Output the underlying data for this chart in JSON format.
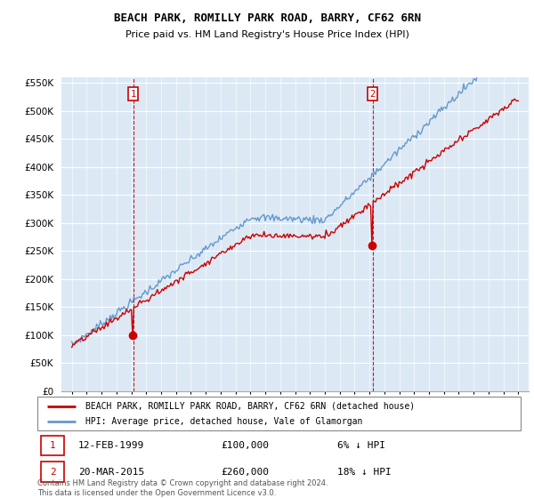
{
  "title": "BEACH PARK, ROMILLY PARK ROAD, BARRY, CF62 6RN",
  "subtitle": "Price paid vs. HM Land Registry's House Price Index (HPI)",
  "legend_label_red": "BEACH PARK, ROMILLY PARK ROAD, BARRY, CF62 6RN (detached house)",
  "legend_label_blue": "HPI: Average price, detached house, Vale of Glamorgan",
  "marker1_date": "12-FEB-1999",
  "marker1_price": 100000,
  "marker1_pct": "6% ↓ HPI",
  "marker2_date": "20-MAR-2015",
  "marker2_price": 260000,
  "marker2_pct": "18% ↓ HPI",
  "footnote": "Contains HM Land Registry data © Crown copyright and database right 2024.\nThis data is licensed under the Open Government Licence v3.0.",
  "ylim": [
    0,
    560000
  ],
  "yticks": [
    0,
    50000,
    100000,
    150000,
    200000,
    250000,
    300000,
    350000,
    400000,
    450000,
    500000,
    550000
  ],
  "red_color": "#cc0000",
  "blue_color": "#6699cc",
  "marker_box_color": "#cc0000",
  "dashed_color": "#cc0000",
  "background_color": "#ffffff",
  "plot_bg_color": "#dce9f5",
  "grid_color": "#ffffff"
}
